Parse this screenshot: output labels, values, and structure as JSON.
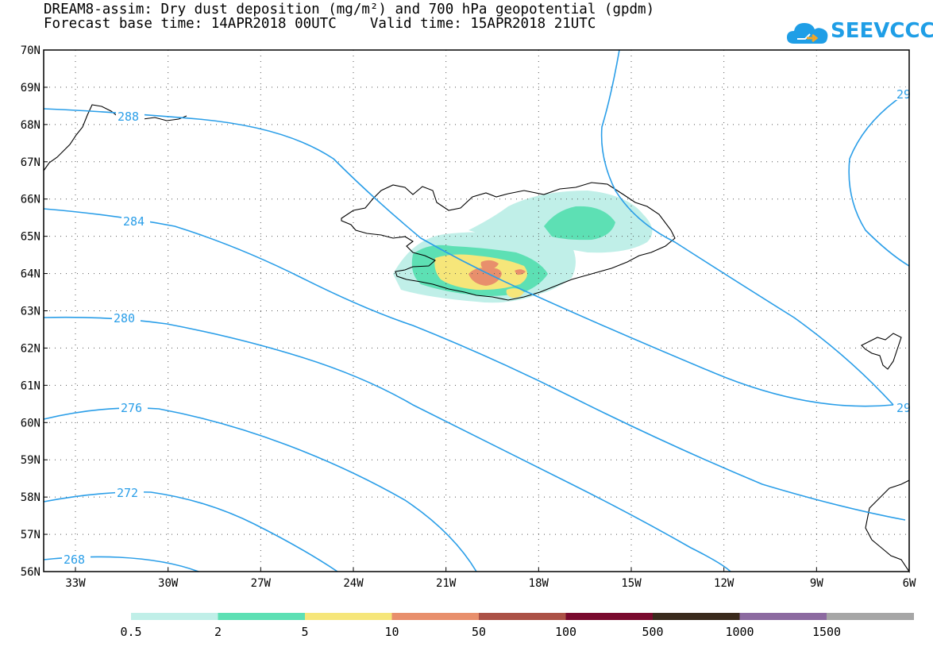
{
  "header": {
    "title_line1": "DREAM8-assim: Dry dust deposition (mg/m²) and 700 hPa geopotential (gpdm)",
    "title_line2": "Forecast base time: 14APR2018 00UTC    Valid time: 15APR2018 21UTC"
  },
  "logo": {
    "text": "SEEVCCC",
    "icon": "cloud-icon"
  },
  "map": {
    "lat_labels": [
      "70N",
      "69N",
      "68N",
      "67N",
      "66N",
      "65N",
      "64N",
      "63N",
      "62N",
      "61N",
      "60N",
      "59N",
      "58N",
      "57N",
      "56N"
    ],
    "lon_labels": [
      "33W",
      "30W",
      "27W",
      "24W",
      "21W",
      "18W",
      "15W",
      "12W",
      "9W",
      "6W"
    ],
    "contour_labels": [
      "288",
      "284",
      "280",
      "276",
      "272",
      "268",
      "29",
      "29"
    ],
    "contour_color": "#2a9ee8"
  },
  "legend": {
    "labels": [
      "0.5",
      "2",
      "5",
      "10",
      "50",
      "100",
      "500",
      "1000",
      "1500"
    ],
    "colors": [
      "#c0efe8",
      "#5de0b4",
      "#f6e67a",
      "#e88f6c",
      "#ab5146",
      "#7a0a2e",
      "#3a2a1c",
      "#8c6aa0",
      "#a6a6a6"
    ]
  }
}
